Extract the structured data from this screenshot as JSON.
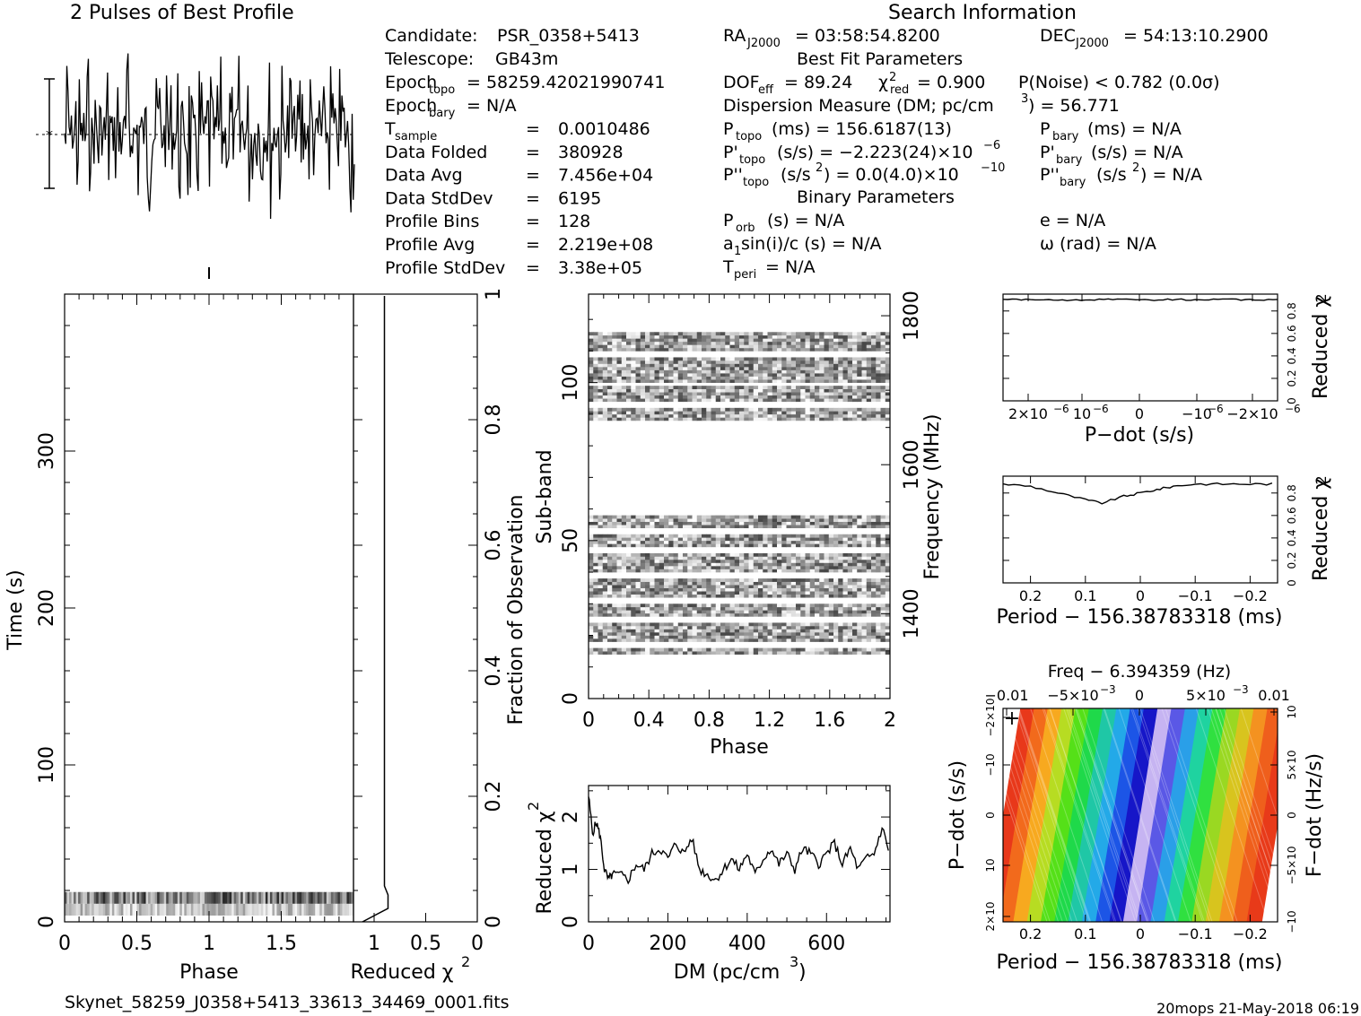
{
  "header": {
    "title_best_profile": "2 Pulses of Best Profile",
    "title_search_info": "Search Information",
    "best_fit_heading": "Best Fit Parameters",
    "binary_heading": "Binary Parameters",
    "footer_filename": "Skynet_58259_J0358+5413_33613_34469_0001.fits",
    "footer_stamp": "20mops 21-May-2018 06:19"
  },
  "info_left": {
    "candidate_label": "Candidate:",
    "candidate_value": "PSR_0358+5413",
    "telescope_label": "Telescope:",
    "telescope_value": "GB43m",
    "epoch_topo_label": "Epoch",
    "epoch_topo_sub": "topo",
    "epoch_topo_value": "= 58259.42021990741",
    "epoch_bary_label": "Epoch",
    "epoch_bary_sub": "bary",
    "epoch_bary_value": "= N/A",
    "rows": [
      {
        "label": "T",
        "sub": "sample",
        "eq": "=",
        "value": "0.0010486"
      },
      {
        "label": "Data Folded",
        "sub": "",
        "eq": "=",
        "value": "380928"
      },
      {
        "label": "Data Avg",
        "sub": "",
        "eq": "=",
        "value": "7.456e+04"
      },
      {
        "label": "Data StdDev",
        "sub": "",
        "eq": "=",
        "value": "6195"
      },
      {
        "label": "Profile Bins",
        "sub": "",
        "eq": "=",
        "value": "128"
      },
      {
        "label": "Profile Avg",
        "sub": "",
        "eq": "=",
        "value": "2.219e+08"
      },
      {
        "label": "Profile StdDev",
        "sub": "",
        "eq": "=",
        "value": "3.38e+05"
      }
    ]
  },
  "info_mid": {
    "ra": "= 03:58:54.8200",
    "ra_label": "RA",
    "ra_sub": "J2000",
    "dof_label": "DOF",
    "dof_sub": "eff",
    "dof_value": "= 89.24",
    "chi_label": "χ",
    "chi_sub": "red",
    "chi_value": "= 0.900",
    "pnoise": "P(Noise) < 0.782  (0.0σ)",
    "dm_line": "Dispersion Measure (DM; pc/cm",
    "dm_value": ") = 56.771",
    "ptopo_label": "P",
    "ptopo_sub": "topo",
    "ptopo_value": "(ms) =  156.6187(13)",
    "pdtopo_label": "P'",
    "pdtopo_sub": "topo",
    "pdtopo_value": "(s/s) = −2.223(24)×10",
    "pdtopo_exp": "−6",
    "pddtopo_label": "P''",
    "pddtopo_sub": "topo",
    "pddtopo_value": "(s/s",
    "pddtopo_rest": ") = 0.0(4.0)×10",
    "pddtopo_exp": "−10",
    "porb_label": "P",
    "porb_sub": "orb",
    "porb_value": "(s) = N/A",
    "a1_value": "a",
    "a1_rest": "sin(i)/c (s) = N/A",
    "tperi_label": "T",
    "tperi_sub": "peri",
    "tperi_value": "= N/A"
  },
  "info_right": {
    "dec_label": "DEC",
    "dec_sub": "J2000",
    "dec_value": "= 54:13:10.2900",
    "pbary_label": "P",
    "pbary_sub": "bary",
    "pbary_value": "(ms) = N/A",
    "pdbary_label": "P'",
    "pdbary_sub": "bary",
    "pdbary_value": "(s/s) = N/A",
    "pddbary_label": "P''",
    "pddbary_sub": "bary",
    "pddbary_value": "(s/s",
    "pddbary_rest": ") = N/A",
    "e_value": "e = N/A",
    "omega_value": "ω (rad) = N/A"
  },
  "chart_data": [
    {
      "id": "time_phase",
      "type": "heatmap",
      "xlabel": "Phase",
      "ylabel": "Time (s)",
      "xlim": [
        0,
        2
      ],
      "ylim": [
        0,
        400
      ],
      "xticks": [
        "0",
        "0.5",
        "1",
        "1.5"
      ],
      "yticks": [
        "0",
        "100",
        "200",
        "300"
      ],
      "ytick_values": [
        0,
        100,
        200,
        300
      ],
      "xtick_values": [
        0,
        0.5,
        1,
        1.5
      ],
      "data_rows_time_s": [
        4,
        19
      ]
    },
    {
      "id": "time_chi",
      "type": "line",
      "xlabel": "Reduced χ",
      "xlabel_sup": "2",
      "ylabel": "Fraction of Observation",
      "xticks": [
        "1",
        "0.5",
        "0"
      ],
      "xtick_values": [
        1,
        0.5,
        0
      ],
      "xlim": [
        1.2,
        0
      ],
      "yticks": [
        "0",
        "0.2",
        "0.4",
        "0.6",
        "0.8",
        "1"
      ],
      "ytick_values": [
        0,
        0.2,
        0.4,
        0.6,
        0.8,
        1
      ],
      "chi_value": 0.9
    },
    {
      "id": "subband_phase",
      "type": "heatmap",
      "xlabel": "Phase",
      "ylabel": "Sub-band",
      "ylabel_right": "Frequency (MHz)",
      "xlim": [
        0,
        2
      ],
      "ylim": [
        0,
        128
      ],
      "xticks": [
        "0",
        "0.4",
        "0.8",
        "1.2",
        "1.6",
        "2"
      ],
      "xtick_values": [
        0,
        0.4,
        0.8,
        1.2,
        1.6,
        2
      ],
      "yticks": [
        "0",
        "50",
        "100"
      ],
      "ytick_values": [
        0,
        50,
        100
      ],
      "freq_ticks": [
        "1400",
        "1600",
        "1800"
      ],
      "freq_tick_values": [
        1400,
        1600,
        1800
      ],
      "freq_range": [
        1286,
        1829
      ],
      "bands": [
        [
          14,
          16
        ],
        [
          18,
          24
        ],
        [
          26,
          30
        ],
        [
          32,
          38
        ],
        [
          40,
          46
        ],
        [
          48,
          52
        ],
        [
          54,
          58
        ],
        [
          88,
          92
        ],
        [
          94,
          99
        ],
        [
          100,
          108
        ],
        [
          110,
          116
        ]
      ]
    },
    {
      "id": "dm_chi",
      "type": "line",
      "xlabel": "DM (pc/cm",
      "xlabel_sup": "3",
      "xlabel_end": ")",
      "ylabel": "Reduced χ",
      "ylabel_sup": "2",
      "xlim": [
        0,
        760
      ],
      "ylim": [
        0,
        2.6
      ],
      "xticks": [
        "0",
        "200",
        "400",
        "600"
      ],
      "xtick_values": [
        0,
        200,
        400,
        600
      ],
      "yticks": [
        "0",
        "1",
        "2"
      ],
      "ytick_values": [
        0,
        1,
        2
      ],
      "points_dm": [
        0,
        10,
        20,
        30,
        40,
        50,
        60,
        80,
        100,
        120,
        140,
        160,
        180,
        200,
        220,
        240,
        260,
        280,
        300,
        320,
        340,
        360,
        380,
        400,
        420,
        440,
        460,
        480,
        500,
        520,
        540,
        560,
        580,
        600,
        620,
        640,
        660,
        680,
        700,
        720,
        740,
        760
      ],
      "points_chi": [
        2.4,
        1.7,
        1.9,
        1.6,
        1.0,
        0.8,
        0.9,
        0.9,
        0.8,
        1.1,
        1.0,
        1.3,
        1.4,
        1.2,
        1.5,
        1.3,
        1.6,
        1.0,
        0.9,
        0.8,
        1.0,
        1.2,
        1.0,
        1.3,
        0.9,
        1.2,
        1.4,
        1.1,
        1.3,
        1.0,
        1.4,
        1.3,
        1.1,
        1.3,
        1.5,
        1.1,
        1.4,
        1.0,
        1.2,
        1.3,
        1.8,
        1.3
      ]
    },
    {
      "id": "pdot_chi",
      "type": "line",
      "xlabel": "P−dot (s/s)",
      "ylabel": "Reduced χ",
      "ylabel_sup": "2",
      "xticks": [
        "2×10",
        "10",
        "0",
        "−10",
        "−2×10"
      ],
      "xtick_exp": "−6",
      "xlim": [
        2.6e-06,
        -2.6e-06
      ],
      "yticks": [
        "0",
        "0.2",
        "0.4",
        "0.6",
        "0.8"
      ],
      "ytick_values": [
        0,
        0.2,
        0.4,
        0.6,
        0.8
      ],
      "ylim": [
        0,
        0.95
      ],
      "level": 0.9
    },
    {
      "id": "period_chi",
      "type": "line",
      "xlabel": "Period − 156.38783318 (ms)",
      "ylabel": "Reduced χ",
      "ylabel_sup": "2",
      "xticks": [
        "0.2",
        "0.1",
        "0",
        "−0.1",
        "−0.2"
      ],
      "xtick_values": [
        0.2,
        0.1,
        0,
        -0.1,
        -0.2
      ],
      "xlim": [
        0.25,
        -0.25
      ],
      "yticks": [
        "0",
        "0.2",
        "0.4",
        "0.6",
        "0.8"
      ],
      "ytick_values": [
        0,
        0.2,
        0.4,
        0.6,
        0.8
      ],
      "ylim": [
        0,
        0.95
      ],
      "points_period": [
        0.25,
        0.2,
        0.15,
        0.1,
        0.07,
        0.03,
        0.0,
        -0.03,
        -0.06,
        -0.1,
        -0.15,
        -0.2,
        -0.25
      ],
      "points_chi": [
        0.88,
        0.86,
        0.8,
        0.74,
        0.71,
        0.77,
        0.8,
        0.83,
        0.86,
        0.88,
        0.88,
        0.88,
        0.88
      ]
    },
    {
      "id": "pdot_period_map",
      "type": "heatmap",
      "title": "Freq − 6.394359 (Hz)",
      "xlabel": "Period − 156.38783318 (ms)",
      "ylabel": "P−dot (s/s)",
      "ylabel_right": "F−dot (Hz/s)",
      "xticks": [
        "0.2",
        "0.1",
        "0",
        "−0.1",
        "−0.2"
      ],
      "xtick_values": [
        0.2,
        0.1,
        0,
        -0.1,
        -0.2
      ],
      "xlim": [
        0.25,
        -0.25
      ],
      "top_ticks": [
        "−0.01",
        "−5×10",
        "0",
        "5×10",
        "0.01"
      ],
      "top_exp": "−3",
      "left_ticks": [
        "2×10",
        "10",
        "0",
        "−10",
        "−2×10"
      ],
      "left_exp": "−6",
      "right_ticks": [
        "−10",
        "−5×10",
        "0",
        "5×10",
        "10"
      ],
      "right_exp": [
        "−4",
        "−5"
      ],
      "colors": [
        "#e8381a",
        "#f26a1c",
        "#f7a91f",
        "#b7dc22",
        "#55e018",
        "#1fd94a",
        "#1fc7a6",
        "#23a9e8",
        "#1c55e6",
        "#1616c8",
        "#c6b4f2",
        "#5a58e6",
        "#2a9fe8",
        "#1fd3a0",
        "#30e040",
        "#9ad822",
        "#d8c41e",
        "#f49220",
        "#ef5f1c",
        "#e83a19"
      ]
    }
  ]
}
